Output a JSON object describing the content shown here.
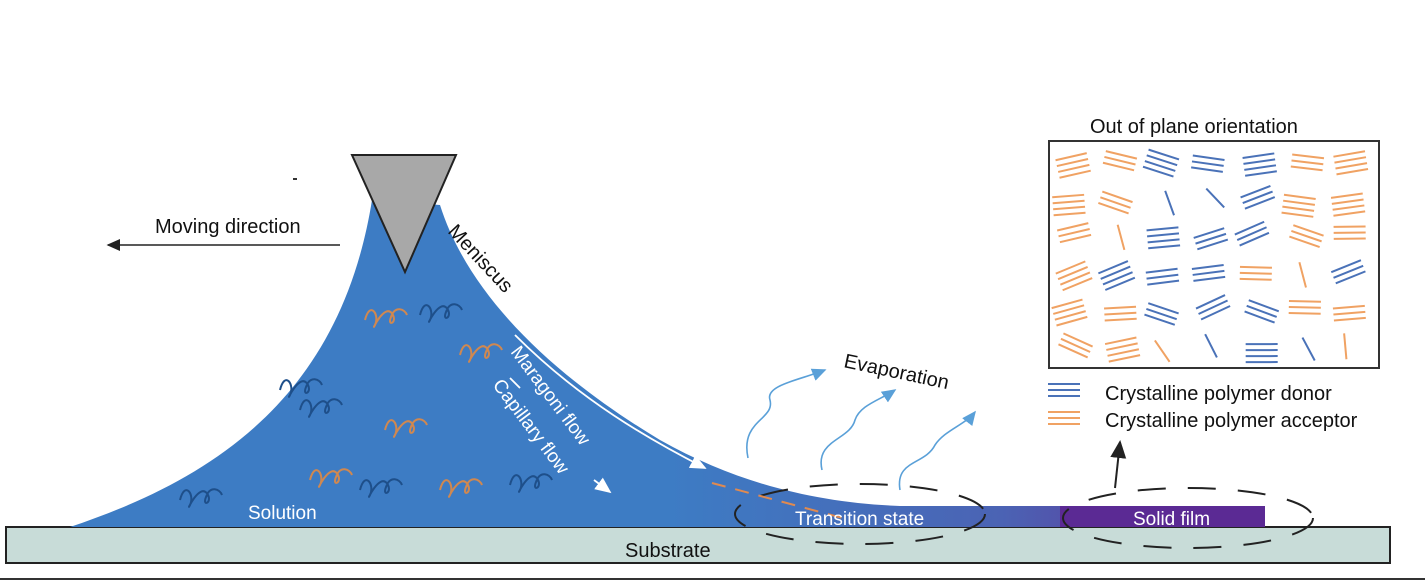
{
  "labels": {
    "moving_direction": "Moving direction",
    "meniscus": "Meniscus",
    "maragoni_flow": "Maragoni flow",
    "capillary_flow": "Capillary flow",
    "evaporation": "Evaporation",
    "solution": "Solution",
    "transition_state": "Transition state",
    "solid_film": "Solid film",
    "substrate": "Substrate",
    "inset_title": "Out of plane orientation"
  },
  "legend": [
    {
      "label": "Crystalline polymer donor",
      "color": "#4a72b8"
    },
    {
      "label": "Crystalline polymer acceptor",
      "color": "#f0a263"
    }
  ],
  "colors": {
    "solution": "#3d7cc4",
    "solid_film": "#5b2a94",
    "substrate": "#c8dcd8",
    "blade": "#a8a8a8",
    "evaporation_arrows": "#5aa0d8"
  }
}
